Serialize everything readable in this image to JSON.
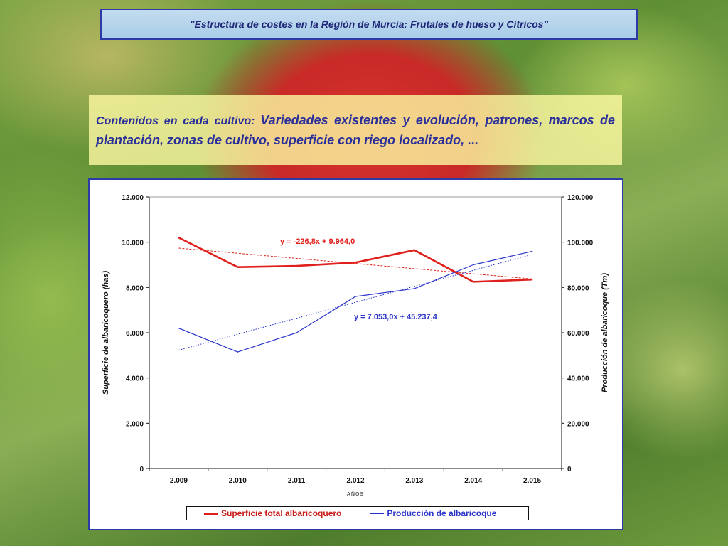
{
  "slide": {
    "title": "\"Estructura de costes en la Región de Murcia: Frutales de hueso y Cítricos\"",
    "contents_lead": "Contenidos en cada cultivo:",
    "contents_body": "Variedades existentes y evolución, patrones, marcos de plantación, zonas de cultivo, superficie con riego localizado, ..."
  },
  "colors": {
    "red_series": "#e0201c",
    "blue_series": "#2a35c9",
    "frame_border": "#2e3aa6"
  },
  "chart_data": {
    "type": "line",
    "title": "",
    "categories": [
      "2.009",
      "2.010",
      "2.011",
      "2.012",
      "2.013",
      "2.014",
      "2.015"
    ],
    "xlabel": "AÑOS",
    "ylabel_left": "Superficie de albaricoquero (has)",
    "ylabel_right": "Producción de albaricoque (Tm)",
    "ylim_left": [
      0,
      12000
    ],
    "ylim_right": [
      0,
      120000
    ],
    "yticks_left": [
      "0",
      "2.000",
      "4.000",
      "6.000",
      "8.000",
      "10.000",
      "12.000"
    ],
    "yticks_right": [
      "0",
      "20.000",
      "40.000",
      "60.000",
      "80.000",
      "100.000",
      "120.000"
    ],
    "grid": false,
    "legend_position": "bottom",
    "series": [
      {
        "name": "Superficie total albaricoquero",
        "axis": "left",
        "color": "#e0201c",
        "values": [
          10200,
          8900,
          8950,
          9100,
          9650,
          8250,
          8350
        ],
        "trendline": {
          "equation": "y = -226,8x + 9.964,0",
          "slope": -226.8,
          "intercept": 9964.0
        }
      },
      {
        "name": "Producción de albaricoque",
        "axis": "right",
        "color": "#2a35c9",
        "values": [
          62000,
          51500,
          60000,
          76000,
          79500,
          90000,
          96000
        ],
        "trendline": {
          "equation": "y = 7.053,0x + 45.237,4",
          "slope": 7053.0,
          "intercept": 45237.4
        }
      }
    ]
  }
}
